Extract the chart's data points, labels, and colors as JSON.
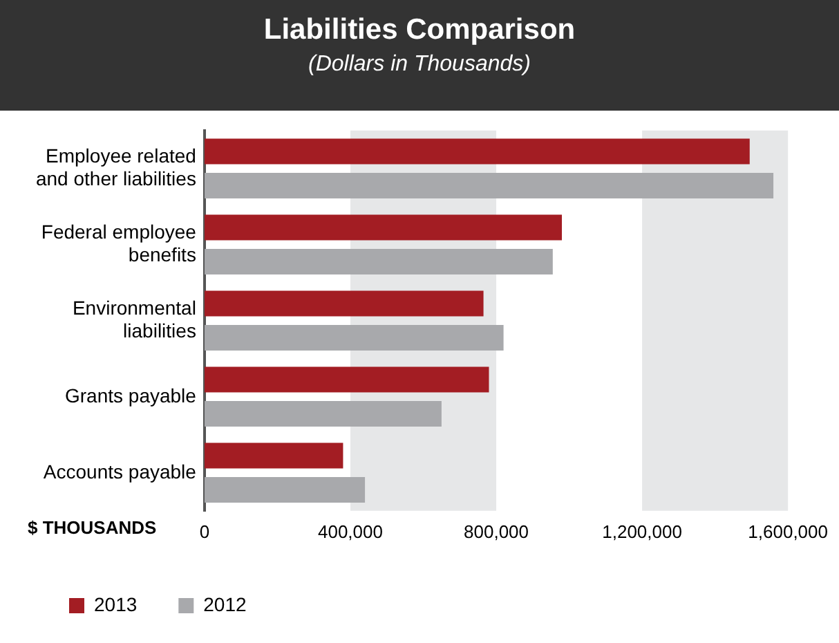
{
  "chart_data": {
    "type": "bar",
    "orientation": "horizontal",
    "title": "Liabilities Comparison",
    "subtitle": "(Dollars in Thousands)",
    "xlabel": "$ THOUSANDS",
    "categories": [
      "Employee related and other liabilities",
      "Federal employee benefits",
      "Environmental liabilities",
      "Grants payable",
      "Accounts payable"
    ],
    "series": [
      {
        "name": "2013",
        "color": "#a31d23",
        "values": [
          1495000,
          980000,
          765000,
          780000,
          380000
        ]
      },
      {
        "name": "2012",
        "color": "#a8a9ac",
        "values": [
          1560000,
          955000,
          820000,
          650000,
          440000
        ]
      }
    ],
    "xlim": [
      0,
      1600000
    ],
    "xticks": [
      0,
      {
        "value": 400000,
        "label": "400,000"
      },
      {
        "value": 800000,
        "label": "800,000"
      },
      {
        "value": 1200000,
        "label": "1,200,000"
      },
      {
        "value": 1600000,
        "label": "1,600,000"
      }
    ],
    "bands": [
      {
        "axis": "x",
        "from": 400000,
        "to": 800000,
        "color": "#e6e7e8"
      },
      {
        "axis": "x",
        "from": 1200000,
        "to": 1600000,
        "color": "#e6e7e8"
      }
    ],
    "grid": false,
    "legend": "bottom"
  }
}
